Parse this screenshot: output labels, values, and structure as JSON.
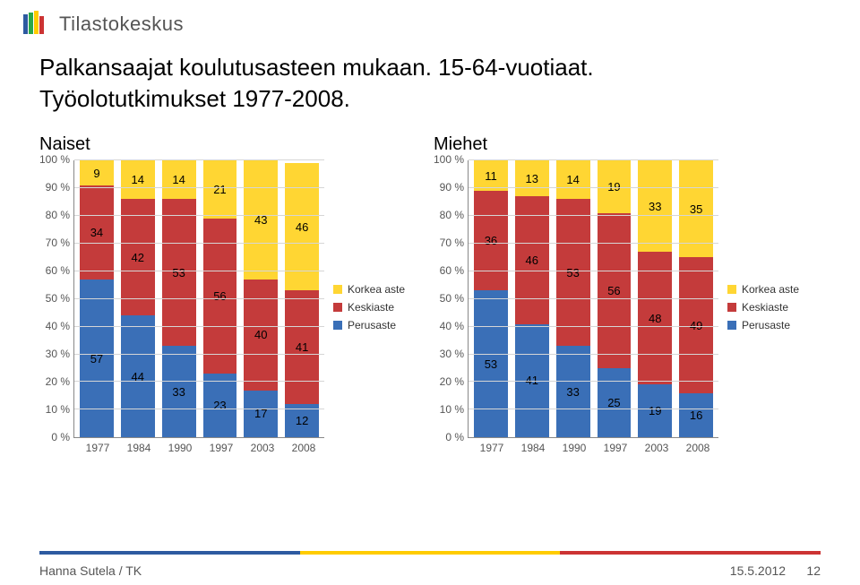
{
  "org_name": "Tilastokeskus",
  "title_line1": "Palkansaajat koulutusasteen mukaan. 15-64-vuotiaat.",
  "title_line2": "Työolotutkimukset 1977-2008.",
  "colors": {
    "korkea": "#ffd633",
    "keski": "#c43b3b",
    "perus": "#3a6fb7",
    "grid": "#d6d6d6",
    "axis": "#888888",
    "bg": "#ffffff",
    "footer_blue": "#2d5aa0",
    "footer_yellow": "#ffcc00",
    "footer_red": "#cc3333"
  },
  "typography": {
    "title_fontsize": 26,
    "chart_title_fontsize": 20,
    "axis_fontsize": 12,
    "datalabel_fontsize": 13
  },
  "y_ticks": [
    "100 %",
    "90 %",
    "80 %",
    "70 %",
    "60 %",
    "50 %",
    "40 %",
    "30 %",
    "20 %",
    "10 %",
    "0 %"
  ],
  "legend": [
    {
      "label": "Korkea aste",
      "key": "korkea"
    },
    {
      "label": "Keskiaste",
      "key": "keski"
    },
    {
      "label": "Perusaste",
      "key": "perus"
    }
  ],
  "charts": {
    "left": {
      "title": "Naiset",
      "categories": [
        "1977",
        "1984",
        "1990",
        "1997",
        "2003",
        "2008"
      ],
      "series": {
        "korkea": [
          9,
          14,
          14,
          21,
          43,
          46
        ],
        "keski": [
          34,
          42,
          53,
          56,
          40,
          41
        ],
        "perus": [
          57,
          44,
          33,
          23,
          17,
          12
        ]
      },
      "bar_width": 0.78
    },
    "right": {
      "title": "Miehet",
      "categories": [
        "1977",
        "1984",
        "1990",
        "1997",
        "2003",
        "2008"
      ],
      "series": {
        "korkea": [
          11,
          13,
          14,
          19,
          33,
          35
        ],
        "keski": [
          36,
          46,
          53,
          56,
          48,
          49
        ],
        "perus": [
          53,
          41,
          33,
          25,
          19,
          16
        ]
      },
      "bar_width": 0.78
    }
  },
  "footer": {
    "author": "Hanna Sutela / TK",
    "date": "15.5.2012",
    "page": "12"
  }
}
